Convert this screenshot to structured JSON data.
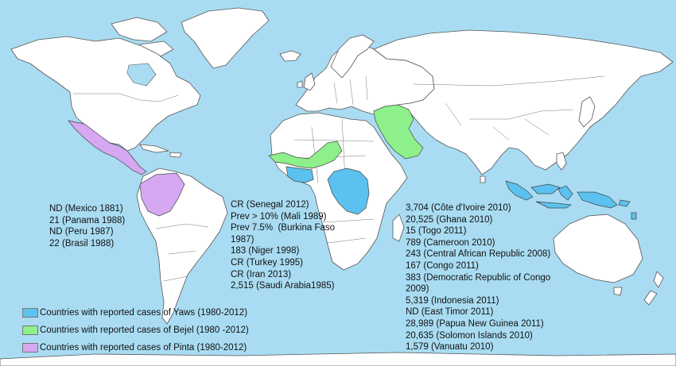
{
  "colors": {
    "ocean": "#a9dcf2",
    "land": "#ffffff",
    "yaws": "#5bc2ef",
    "bejel": "#8ef08a",
    "pinta": "#d6a8f2"
  },
  "legend": {
    "items": [
      {
        "label": "Countries with reported cases of Yaws (1980-2012)",
        "color": "#5bc2ef"
      },
      {
        "label": "Countries with reported cases of Bejel (1980 -2012)",
        "color": "#8ef08a"
      },
      {
        "label": "Countries with reported cases of Pinta (1980-2012)",
        "color": "#d6a8f2"
      }
    ]
  },
  "annotations": {
    "pinta": [
      "ND (Mexico 1881)",
      "21 (Panama 1988)",
      "ND (Peru 1987)",
      "22 (Brasil 1988)"
    ],
    "bejel": [
      "CR (Senegal 2012)",
      "Prev > 10% (Mali 1989)",
      "Prev 7.5%  (Burkina Faso",
      "1987)",
      "183 (Niger 1998)",
      "CR (Turkey 1995)",
      "CR (Iran 2013)",
      "2,515 (Saudi Arabia1985)"
    ],
    "yaws": [
      "3,704 (Côte d'Ivoire 2010)",
      "20,525 (Ghana 2010)",
      "15 (Togo 2011)",
      "789 (Cameroon 2010)",
      "243 (Central African Republic 2008)",
      "167 (Congo 2011)",
      "383 (Democratic Republic of Congo",
      "2009)",
      "5,319 (Indonesia 2011)",
      "ND (East Timor 2011)",
      "28,989 (Papua New Guinea 2011)",
      "20,635 (Solomon Islands 2010)",
      "1,579 (Vanuatu 2010)"
    ]
  }
}
